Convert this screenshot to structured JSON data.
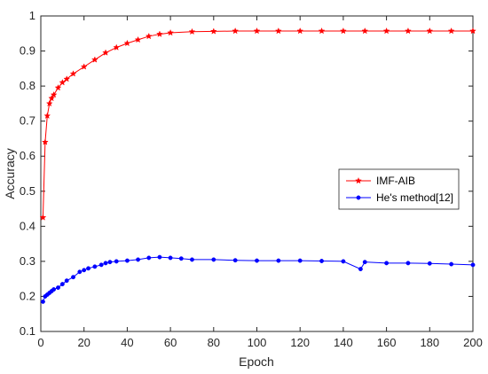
{
  "chart_data": {
    "type": "line",
    "title": "",
    "xlabel": "Epoch",
    "ylabel": "Accuracy",
    "xlim": [
      0,
      200
    ],
    "ylim": [
      0.1,
      1
    ],
    "xticks": [
      0,
      20,
      40,
      60,
      80,
      100,
      120,
      140,
      160,
      180,
      200
    ],
    "yticks": [
      0.1,
      0.2,
      0.3,
      0.4,
      0.5,
      0.6,
      0.7,
      0.8,
      0.9,
      1
    ],
    "ytick_labels": [
      "0.1",
      "0.2",
      "0.3",
      "0.4",
      "0.5",
      "0.6",
      "0.7",
      "0.8",
      "0.9",
      "1"
    ],
    "grid": false,
    "legend_position": "center-right",
    "series": [
      {
        "name": "IMF-AIB",
        "color": "#ff0000",
        "marker": "star",
        "x": [
          1,
          2,
          3,
          4,
          5,
          6,
          8,
          10,
          12,
          15,
          20,
          25,
          30,
          35,
          40,
          45,
          50,
          55,
          60,
          70,
          80,
          90,
          100,
          110,
          120,
          130,
          140,
          150,
          160,
          170,
          180,
          190,
          200
        ],
        "values": [
          0.425,
          0.64,
          0.715,
          0.75,
          0.765,
          0.775,
          0.795,
          0.81,
          0.82,
          0.835,
          0.855,
          0.875,
          0.895,
          0.91,
          0.922,
          0.932,
          0.942,
          0.948,
          0.952,
          0.955,
          0.956,
          0.957,
          0.957,
          0.957,
          0.957,
          0.957,
          0.957,
          0.957,
          0.957,
          0.957,
          0.957,
          0.957,
          0.957
        ]
      },
      {
        "name": "He's method[12]",
        "color": "#0000ff",
        "marker": "circle",
        "x": [
          1,
          2,
          3,
          4,
          5,
          6,
          8,
          10,
          12,
          15,
          18,
          20,
          22,
          25,
          28,
          30,
          32,
          35,
          40,
          45,
          50,
          55,
          60,
          65,
          70,
          80,
          90,
          100,
          110,
          120,
          130,
          140,
          148,
          150,
          160,
          170,
          180,
          190,
          200
        ],
        "values": [
          0.185,
          0.2,
          0.205,
          0.21,
          0.215,
          0.22,
          0.225,
          0.235,
          0.245,
          0.255,
          0.27,
          0.275,
          0.28,
          0.285,
          0.29,
          0.295,
          0.298,
          0.3,
          0.302,
          0.305,
          0.31,
          0.312,
          0.31,
          0.308,
          0.305,
          0.305,
          0.303,
          0.302,
          0.302,
          0.302,
          0.301,
          0.3,
          0.278,
          0.298,
          0.295,
          0.295,
          0.294,
          0.292,
          0.29
        ]
      }
    ]
  }
}
